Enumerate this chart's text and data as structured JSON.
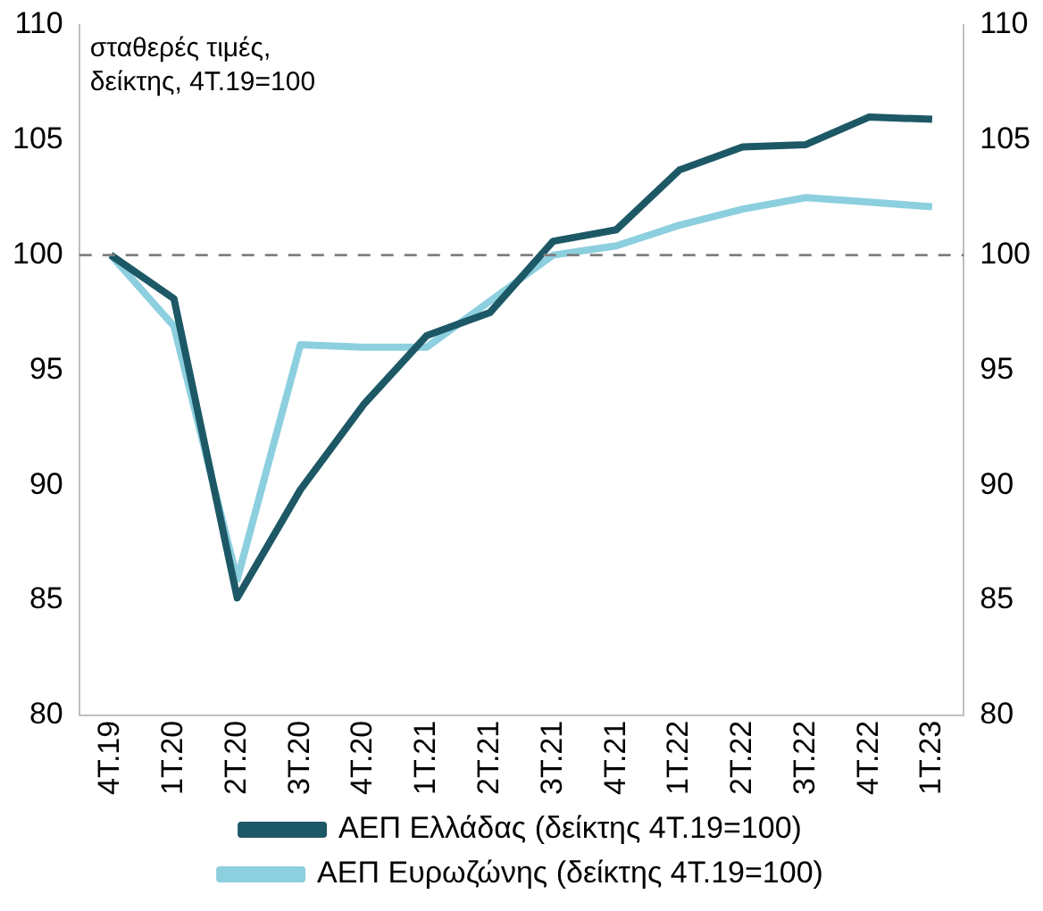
{
  "chart_data": {
    "type": "line",
    "categories": [
      "4T.19",
      "1T.20",
      "2T.20",
      "3T.20",
      "4T.20",
      "1T.21",
      "2T.21",
      "3T.21",
      "4T.21",
      "1T.22",
      "2T.22",
      "3T.22",
      "4T.22",
      "1T.23"
    ],
    "series": [
      {
        "name": "ΑΕΠ Ελλάδας (δείκτης 4Τ.19=100)",
        "color": "#1d5866",
        "values": [
          100,
          98.1,
          85.1,
          89.8,
          93.5,
          96.5,
          97.5,
          100.6,
          101.1,
          103.7,
          104.7,
          104.8,
          106.0,
          105.9
        ]
      },
      {
        "name": "ΑΕΠ Ευρωζώνης (δείκτης 4Τ.19=100)",
        "color": "#8ccfdf",
        "values": [
          100,
          96.9,
          85.9,
          96.1,
          96.0,
          96.0,
          98.0,
          100.0,
          100.4,
          101.3,
          102.0,
          102.5,
          102.3,
          102.1
        ]
      }
    ],
    "ylim": [
      80,
      110
    ],
    "yticks": [
      80,
      85,
      90,
      95,
      100,
      105,
      110
    ],
    "y2lim": [
      80,
      110
    ],
    "y2ticks": [
      80,
      85,
      90,
      95,
      100,
      105,
      110
    ],
    "annotations": [
      "σταθερές τιμές,\nδείκτης, 4Τ.19=100"
    ],
    "ref_lines": [
      {
        "axis": "y",
        "value": 100,
        "color": "#7f7f7f",
        "line_style": "dashed"
      }
    ],
    "grid": false,
    "legend": "bottom",
    "marker": "none",
    "line_style": "solid"
  }
}
